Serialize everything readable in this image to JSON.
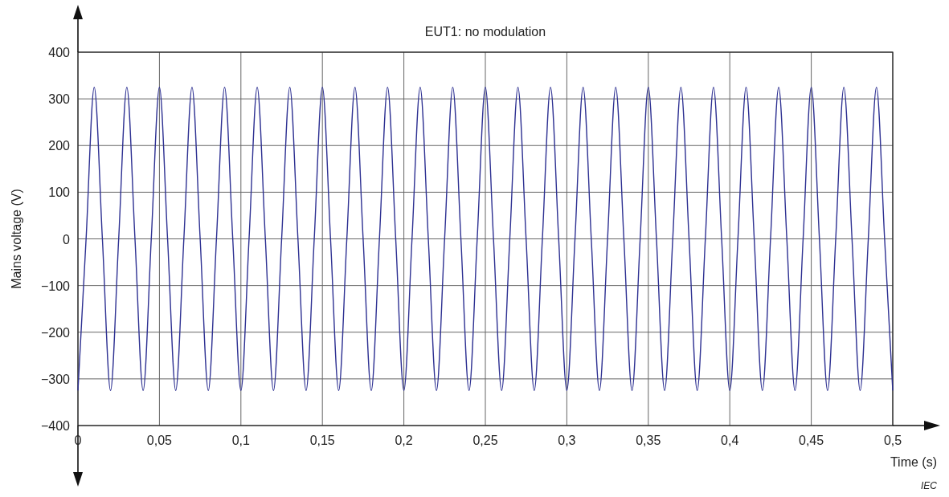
{
  "chart_data": {
    "type": "line",
    "title": "EUT1: no modulation",
    "xlabel": "Time (s)",
    "ylabel": "Mains voltage  (V)",
    "annotations": [
      "IEC"
    ],
    "x": [
      0,
      0.005,
      0.01,
      0.015,
      0.02,
      0.025,
      0.03,
      0.035,
      0.04,
      0.045,
      0.05,
      0.055,
      0.06,
      0.065,
      0.07,
      0.075,
      0.08,
      0.085,
      0.09,
      0.095,
      0.1,
      0.105,
      0.11,
      0.115,
      0.12,
      0.125,
      0.13,
      0.135,
      0.14,
      0.145,
      0.15,
      0.155,
      0.16,
      0.165,
      0.17,
      0.175,
      0.18,
      0.185,
      0.19,
      0.195,
      0.2,
      0.205,
      0.21,
      0.215,
      0.22,
      0.225,
      0.23,
      0.235,
      0.24,
      0.245,
      0.25,
      0.255,
      0.26,
      0.265,
      0.27,
      0.275,
      0.28,
      0.285,
      0.29,
      0.295,
      0.3,
      0.305,
      0.31,
      0.315,
      0.32,
      0.325,
      0.33,
      0.335,
      0.34,
      0.345,
      0.35,
      0.355,
      0.36,
      0.365,
      0.37,
      0.375,
      0.38,
      0.385,
      0.39,
      0.395,
      0.4,
      0.405,
      0.41,
      0.415,
      0.42,
      0.425,
      0.43,
      0.435,
      0.44,
      0.445,
      0.45,
      0.455,
      0.46,
      0.465,
      0.47,
      0.475,
      0.48,
      0.485,
      0.49,
      0.495,
      0.5
    ],
    "series": [
      {
        "color": "#2e3192",
        "values": [
          -325,
          0,
          325,
          0,
          -325,
          0,
          325,
          0,
          -325,
          0,
          325,
          0,
          -325,
          0,
          325,
          0,
          -325,
          0,
          325,
          0,
          -325,
          0,
          325,
          0,
          -325,
          0,
          325,
          0,
          -325,
          0,
          325,
          0,
          -325,
          0,
          325,
          0,
          -325,
          0,
          325,
          0,
          -325,
          0,
          325,
          0,
          -325,
          0,
          325,
          0,
          -325,
          0,
          325,
          0,
          -325,
          0,
          325,
          0,
          -325,
          0,
          325,
          0,
          -325,
          0,
          325,
          0,
          -325,
          0,
          325,
          0,
          -325,
          0,
          325,
          0,
          -325,
          0,
          325,
          0,
          -325,
          0,
          325,
          0,
          -325,
          0,
          325,
          0,
          -325,
          0,
          325,
          0,
          -325,
          0,
          325,
          0,
          -325,
          0,
          325,
          0,
          -325,
          0,
          325,
          0,
          -325
        ]
      }
    ],
    "xlim": [
      0,
      0.5
    ],
    "xticks": [
      0,
      {
        "value": 0.05,
        "label": "0,05"
      },
      {
        "value": 0.1,
        "label": "0,1"
      },
      {
        "value": 0.15,
        "label": "0,15"
      },
      {
        "value": 0.2,
        "label": "0,2"
      },
      {
        "value": 0.25,
        "label": "0,25"
      },
      {
        "value": 0.3,
        "label": "0,3"
      },
      {
        "value": 0.35,
        "label": "0,35"
      },
      {
        "value": 0.4,
        "label": "0,4"
      },
      {
        "value": 0.45,
        "label": "0,45"
      },
      {
        "value": 0.5,
        "label": "0,5"
      }
    ],
    "ylim": [
      -400,
      400
    ],
    "yticks": [
      {
        "value": -400,
        "label": "−400"
      },
      {
        "value": -300,
        "label": "−300"
      },
      {
        "value": -200,
        "label": "−200"
      },
      {
        "value": -100,
        "label": "−100"
      },
      0,
      100,
      200,
      300,
      400
    ],
    "grid": true,
    "marker": "none",
    "line_style": "solid"
  }
}
